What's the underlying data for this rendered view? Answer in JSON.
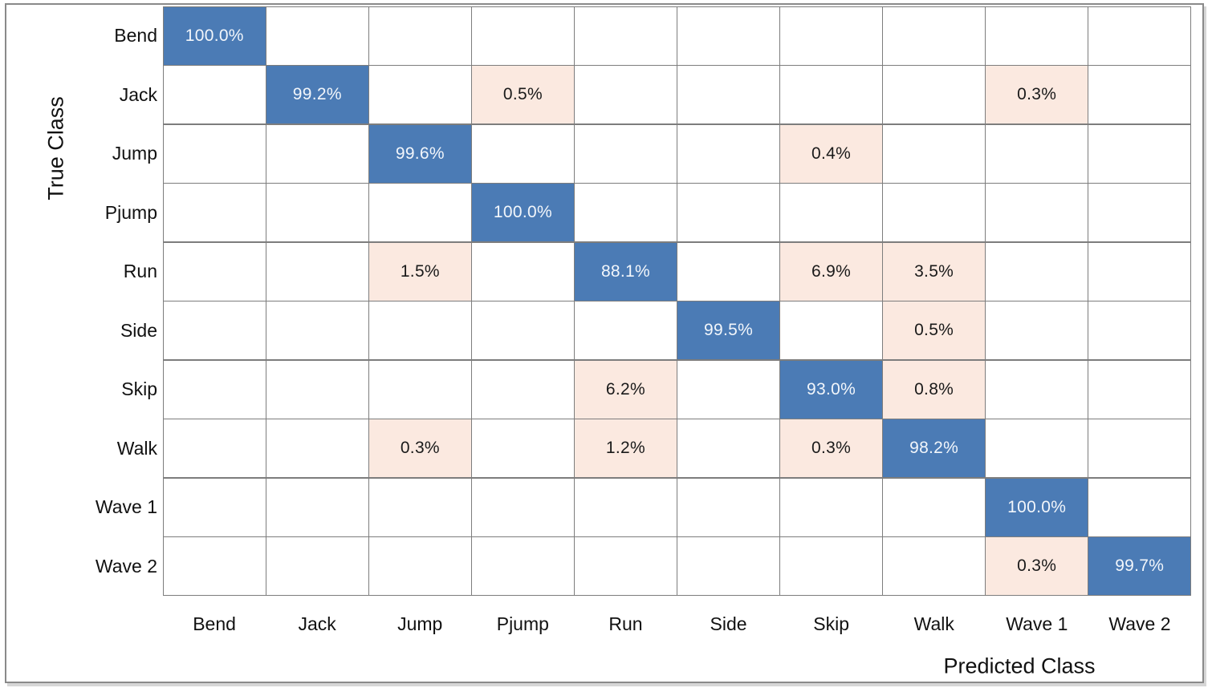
{
  "chart_data": {
    "type": "heatmap",
    "subtype": "confusion-matrix",
    "title": "",
    "xlabel": "Predicted Class",
    "ylabel": "True Class",
    "classes": [
      "Bend",
      "Jack",
      "Jump",
      "Pjump",
      "Run",
      "Side",
      "Skip",
      "Walk",
      "Wave 1",
      "Wave 2"
    ],
    "cell_labels": [
      [
        "100.0%",
        "",
        "",
        "",
        "",
        "",
        "",
        "",
        "",
        ""
      ],
      [
        "",
        "99.2%",
        "",
        "0.5%",
        "",
        "",
        "",
        "",
        "0.3%",
        ""
      ],
      [
        "",
        "",
        "99.6%",
        "",
        "",
        "",
        "0.4%",
        "",
        "",
        ""
      ],
      [
        "",
        "",
        "",
        "100.0%",
        "",
        "",
        "",
        "",
        "",
        ""
      ],
      [
        "",
        "",
        "1.5%",
        "",
        "88.1%",
        "",
        "6.9%",
        "3.5%",
        "",
        ""
      ],
      [
        "",
        "",
        "",
        "",
        "",
        "99.5%",
        "",
        "0.5%",
        "",
        ""
      ],
      [
        "",
        "",
        "",
        "",
        "6.2%",
        "",
        "93.0%",
        "0.8%",
        "",
        ""
      ],
      [
        "",
        "",
        "0.3%",
        "",
        "1.2%",
        "",
        "0.3%",
        "98.2%",
        "",
        ""
      ],
      [
        "",
        "",
        "",
        "",
        "",
        "",
        "",
        "",
        "100.0%",
        ""
      ],
      [
        "",
        "",
        "",
        "",
        "",
        "",
        "",
        "",
        "0.3%",
        "99.7%"
      ]
    ],
    "values_percent": [
      [
        100.0,
        null,
        null,
        null,
        null,
        null,
        null,
        null,
        null,
        null
      ],
      [
        null,
        99.2,
        null,
        0.5,
        null,
        null,
        null,
        null,
        0.3,
        null
      ],
      [
        null,
        null,
        99.6,
        null,
        null,
        null,
        0.4,
        null,
        null,
        null
      ],
      [
        null,
        null,
        null,
        100.0,
        null,
        null,
        null,
        null,
        null,
        null
      ],
      [
        null,
        null,
        1.5,
        null,
        88.1,
        null,
        6.9,
        3.5,
        null,
        null
      ],
      [
        null,
        null,
        null,
        null,
        null,
        99.5,
        null,
        0.5,
        null,
        null
      ],
      [
        null,
        null,
        null,
        null,
        6.2,
        null,
        93.0,
        0.8,
        null,
        null
      ],
      [
        null,
        null,
        0.3,
        null,
        1.2,
        null,
        0.3,
        98.2,
        null,
        null
      ],
      [
        null,
        null,
        null,
        null,
        null,
        null,
        null,
        null,
        100.0,
        null
      ],
      [
        null,
        null,
        null,
        null,
        null,
        null,
        null,
        null,
        0.3,
        99.7
      ]
    ],
    "grid": true,
    "legend_position": "none",
    "axis_note": "rows = True Class (top to bottom), columns = Predicted Class (left to right)",
    "colors": {
      "diagonal_fill": "#4b7bb5",
      "offdiagonal_fill": "#fbe9e0",
      "empty_fill": "#ffffff",
      "grid_line": "#7d7d7d",
      "figure_border": "#8a8a8a",
      "diagonal_text": "#f2f6fb",
      "text": "#1a1a1a"
    }
  }
}
